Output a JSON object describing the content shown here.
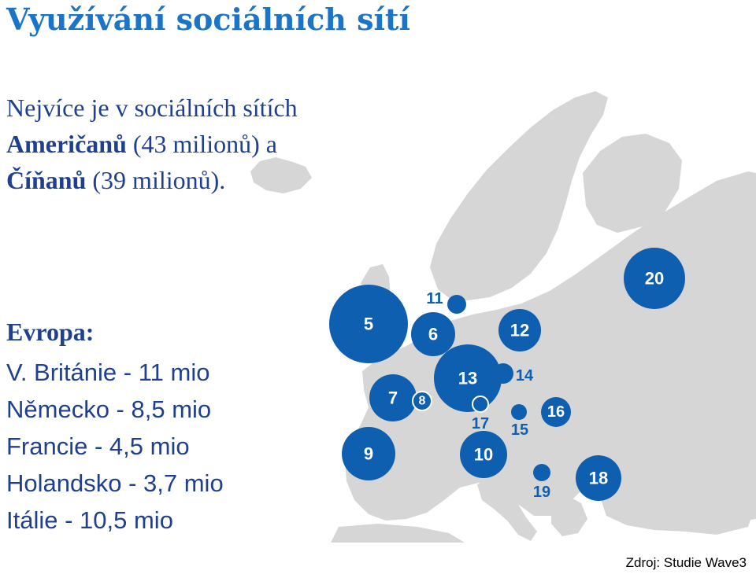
{
  "title": "Využívání sociálních sítí",
  "intro": {
    "part1": "Nejvíce je v sociálních sítích ",
    "americans": "Američanů",
    "part2": " (43 milionů) a ",
    "chinese": "Číňanů",
    "part3": " (39 milionů)."
  },
  "europe": {
    "heading": "Evropa:",
    "items": [
      "V. Británie - 11 mio",
      "Německo - 8,5 mio",
      "Francie - 4,5 mio",
      "Holandsko - 3,7 mio",
      "Itálie - 10,5 mio"
    ]
  },
  "map": {
    "land_color": "#d6d6d6",
    "bubble_color": "#0f5fb0",
    "label_color": "#0f5fb0",
    "markers": [
      {
        "label": "5",
        "size": "large",
        "label_inside": true
      },
      {
        "label": "6",
        "size": "medium",
        "label_inside": true
      },
      {
        "label": "7",
        "size": "medium",
        "label_inside": true
      },
      {
        "label": "8",
        "size": "tiny",
        "label_inside": true
      },
      {
        "label": "9",
        "size": "medium",
        "label_inside": true
      },
      {
        "label": "10",
        "size": "medium",
        "label_inside": true
      },
      {
        "label": "11",
        "size": "small",
        "label_inside": false
      },
      {
        "label": "12",
        "size": "medium",
        "label_inside": true
      },
      {
        "label": "13",
        "size": "large",
        "label_inside": true
      },
      {
        "label": "14",
        "size": "small",
        "label_inside": false
      },
      {
        "label": "15",
        "size": "small",
        "label_inside": false
      },
      {
        "label": "16",
        "size": "small",
        "label_inside": true
      },
      {
        "label": "17",
        "size": "small",
        "label_inside": false
      },
      {
        "label": "18",
        "size": "medium",
        "label_inside": true
      },
      {
        "label": "19",
        "size": "small",
        "label_inside": false
      },
      {
        "label": "20",
        "size": "medium",
        "label_inside": true
      }
    ]
  },
  "source": "Zdroj: Studie Wave3"
}
